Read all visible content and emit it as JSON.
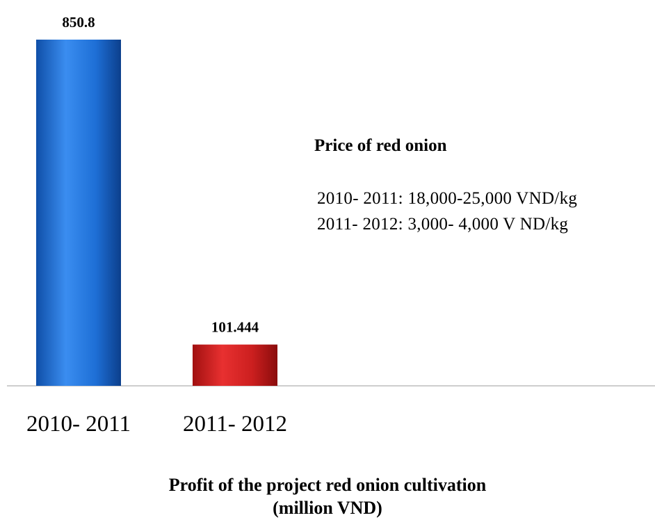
{
  "chart_data": {
    "type": "bar",
    "categories": [
      "2010- 2011",
      "2011- 2012"
    ],
    "values": [
      850.8,
      101.444
    ],
    "value_labels": [
      "850.8",
      "101.444"
    ],
    "colors": [
      "#1f6fd1",
      "#d42020"
    ],
    "caption_line1": "Profit of the project red onion cultivation",
    "caption_line2": "(million VND)",
    "ylim": [
      0,
      850.8
    ],
    "grid": false,
    "legend": "none"
  },
  "annotation": {
    "title": "Price of  red onion",
    "lines": [
      "2010- 2011: 18,000-25,000 VND/kg",
      "2011- 2012: 3,000- 4,000 V ND/kg"
    ]
  }
}
